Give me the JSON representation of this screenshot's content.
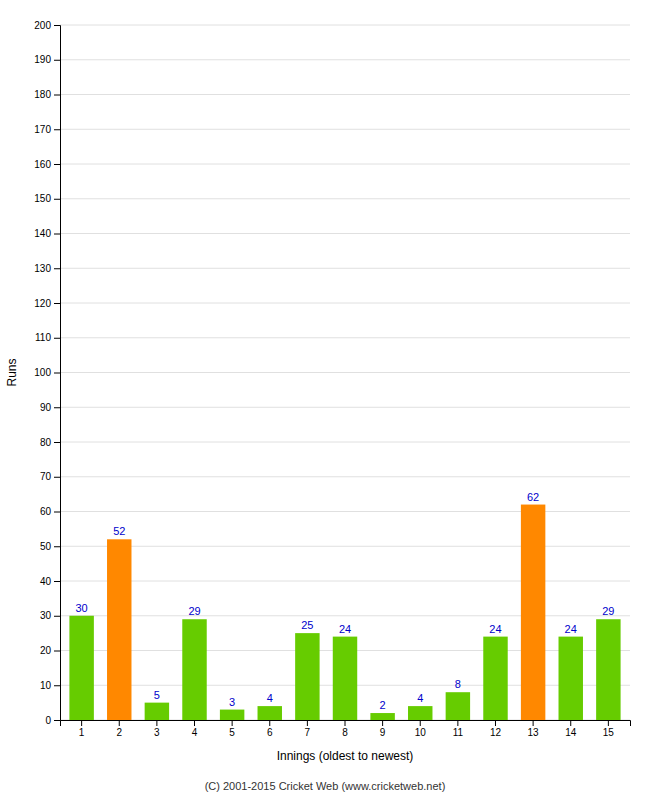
{
  "chart_data": {
    "type": "bar",
    "xlabel": "Innings (oldest to newest)",
    "ylabel": "Runs",
    "categories": [
      1,
      2,
      3,
      4,
      5,
      6,
      7,
      8,
      9,
      10,
      11,
      12,
      13,
      14,
      15
    ],
    "values": [
      30,
      52,
      5,
      29,
      3,
      4,
      25,
      24,
      2,
      4,
      8,
      24,
      62,
      24,
      29
    ],
    "colors": [
      "#66cc00",
      "#ff8800",
      "#66cc00",
      "#66cc00",
      "#66cc00",
      "#66cc00",
      "#66cc00",
      "#66cc00",
      "#66cc00",
      "#66cc00",
      "#66cc00",
      "#66cc00",
      "#ff8800",
      "#66cc00",
      "#66cc00"
    ],
    "ylim": [
      0,
      200
    ],
    "yticks": [
      0,
      10,
      20,
      30,
      40,
      50,
      60,
      70,
      80,
      90,
      100,
      110,
      120,
      130,
      140,
      150,
      160,
      170,
      180,
      190,
      200
    ],
    "grid": true,
    "data_labels": true,
    "footer": "(C) 2001-2015 Cricket Web (www.cricketweb.net)"
  }
}
